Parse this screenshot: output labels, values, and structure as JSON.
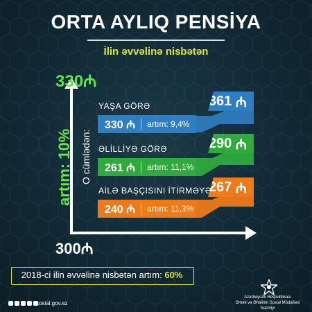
{
  "header": {
    "title": "ORTA AYLIQ PENSİYA",
    "subtitle": "İlin əvvəlinə nisbətən"
  },
  "axis": {
    "top_value": "330",
    "bottom_value": "300",
    "currency_symbol": "₼",
    "growth_label": "artım: 10%",
    "including_label": "O cümlədən:"
  },
  "groups": [
    {
      "category": "YAŞA GÖRƏ",
      "old_value": "330",
      "growth": "artım: 9,4%",
      "new_value": "361",
      "bar_color": "#2f7ec2",
      "tag_color": "#2f7ec2"
    },
    {
      "category": "ƏLİLLİYƏ GÖRƏ",
      "old_value": "261",
      "growth": "artım: 11,1%",
      "new_value": "290",
      "bar_color": "#2faa3d",
      "tag_color": "#2faa3d"
    },
    {
      "category": "AİLƏ BAŞÇISINI İTİRMƏYƏ GÖRƏ",
      "old_value": "240",
      "growth": "artım: 11,3%",
      "new_value": "267",
      "bar_color": "#ee7a19",
      "tag_color": "#ee7a19"
    }
  ],
  "footer": {
    "comparison_text": "2018-ci ilin əvvəlinə nisbətən artım:",
    "comparison_value": "60%",
    "website": "sosial.gov.az",
    "org_line1": "Azərbaycan Respublikası",
    "org_line2": "Əmək və Əhalinin Sosial Müdafiəsi Nazirliyi"
  },
  "colors": {
    "accent_yellow": "#d8e63b",
    "accent_green": "#5fe24a",
    "background": "#132c38"
  }
}
